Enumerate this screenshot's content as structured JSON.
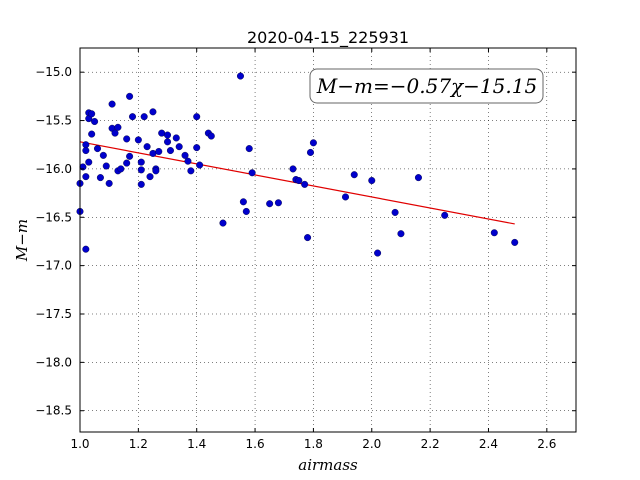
{
  "chart_data": {
    "type": "scatter",
    "title": "2020-04-15_225931",
    "xlabel": "airmass",
    "ylabel": "M−m",
    "xlim": [
      1.0,
      2.7
    ],
    "ylim": [
      -18.72,
      -14.75
    ],
    "x_ticks": [
      1.0,
      1.2,
      1.4,
      1.6,
      1.8,
      2.0,
      2.2,
      2.4,
      2.6
    ],
    "x_tick_labels": [
      "1.0",
      "1.2",
      "1.4",
      "1.6",
      "1.8",
      "2.0",
      "2.2",
      "2.4",
      "2.6"
    ],
    "y_ticks": [
      -15.0,
      -15.5,
      -16.0,
      -16.5,
      -17.0,
      -17.5,
      -18.0,
      -18.5
    ],
    "y_tick_labels": [
      "−15.0",
      "−15.5",
      "−16.0",
      "−16.5",
      "−17.0",
      "−17.5",
      "−18.0",
      "−18.5"
    ],
    "grid": true,
    "annotation": "M−m=−0.57χ−15.15",
    "fit_line": {
      "slope": -0.57,
      "intercept": -15.15,
      "x_range": [
        1.0,
        2.49
      ],
      "color": "#e00000"
    },
    "point_color": "#0000cc",
    "points": [
      [
        1.0,
        -16.15
      ],
      [
        1.0,
        -16.44
      ],
      [
        1.01,
        -15.98
      ],
      [
        1.02,
        -15.75
      ],
      [
        1.02,
        -16.83
      ],
      [
        1.02,
        -16.08
      ],
      [
        1.02,
        -15.81
      ],
      [
        1.03,
        -15.42
      ],
      [
        1.03,
        -15.48
      ],
      [
        1.03,
        -15.93
      ],
      [
        1.04,
        -15.64
      ],
      [
        1.04,
        -15.43
      ],
      [
        1.05,
        -15.51
      ],
      [
        1.06,
        -15.79
      ],
      [
        1.07,
        -16.09
      ],
      [
        1.08,
        -15.86
      ],
      [
        1.09,
        -15.97
      ],
      [
        1.1,
        -16.15
      ],
      [
        1.11,
        -15.33
      ],
      [
        1.11,
        -15.58
      ],
      [
        1.12,
        -15.63
      ],
      [
        1.13,
        -15.57
      ],
      [
        1.13,
        -16.02
      ],
      [
        1.14,
        -16.0
      ],
      [
        1.16,
        -15.94
      ],
      [
        1.16,
        -15.69
      ],
      [
        1.17,
        -15.25
      ],
      [
        1.17,
        -15.87
      ],
      [
        1.18,
        -15.46
      ],
      [
        1.2,
        -15.7
      ],
      [
        1.21,
        -16.01
      ],
      [
        1.21,
        -15.93
      ],
      [
        1.21,
        -16.16
      ],
      [
        1.22,
        -15.46
      ],
      [
        1.23,
        -15.77
      ],
      [
        1.24,
        -16.08
      ],
      [
        1.25,
        -15.41
      ],
      [
        1.25,
        -15.84
      ],
      [
        1.26,
        -16.0
      ],
      [
        1.26,
        -16.02
      ],
      [
        1.27,
        -15.82
      ],
      [
        1.28,
        -15.63
      ],
      [
        1.3,
        -15.65
      ],
      [
        1.3,
        -15.72
      ],
      [
        1.31,
        -15.81
      ],
      [
        1.33,
        -15.68
      ],
      [
        1.34,
        -15.77
      ],
      [
        1.36,
        -15.86
      ],
      [
        1.37,
        -15.92
      ],
      [
        1.38,
        -16.02
      ],
      [
        1.4,
        -15.46
      ],
      [
        1.4,
        -15.78
      ],
      [
        1.41,
        -15.96
      ],
      [
        1.44,
        -15.63
      ],
      [
        1.45,
        -15.66
      ],
      [
        1.49,
        -16.56
      ],
      [
        1.55,
        -15.04
      ],
      [
        1.56,
        -16.34
      ],
      [
        1.57,
        -16.44
      ],
      [
        1.58,
        -15.79
      ],
      [
        1.59,
        -16.04
      ],
      [
        1.65,
        -16.36
      ],
      [
        1.68,
        -16.35
      ],
      [
        1.73,
        -16.0
      ],
      [
        1.74,
        -16.11
      ],
      [
        1.75,
        -16.12
      ],
      [
        1.77,
        -16.16
      ],
      [
        1.78,
        -16.71
      ],
      [
        1.79,
        -15.83
      ],
      [
        1.8,
        -15.73
      ],
      [
        1.91,
        -16.29
      ],
      [
        1.94,
        -16.06
      ],
      [
        2.0,
        -16.12
      ],
      [
        2.02,
        -16.87
      ],
      [
        2.08,
        -16.45
      ],
      [
        2.1,
        -16.67
      ],
      [
        2.16,
        -16.09
      ],
      [
        2.25,
        -16.48
      ],
      [
        2.42,
        -16.66
      ],
      [
        2.49,
        -16.76
      ]
    ]
  }
}
